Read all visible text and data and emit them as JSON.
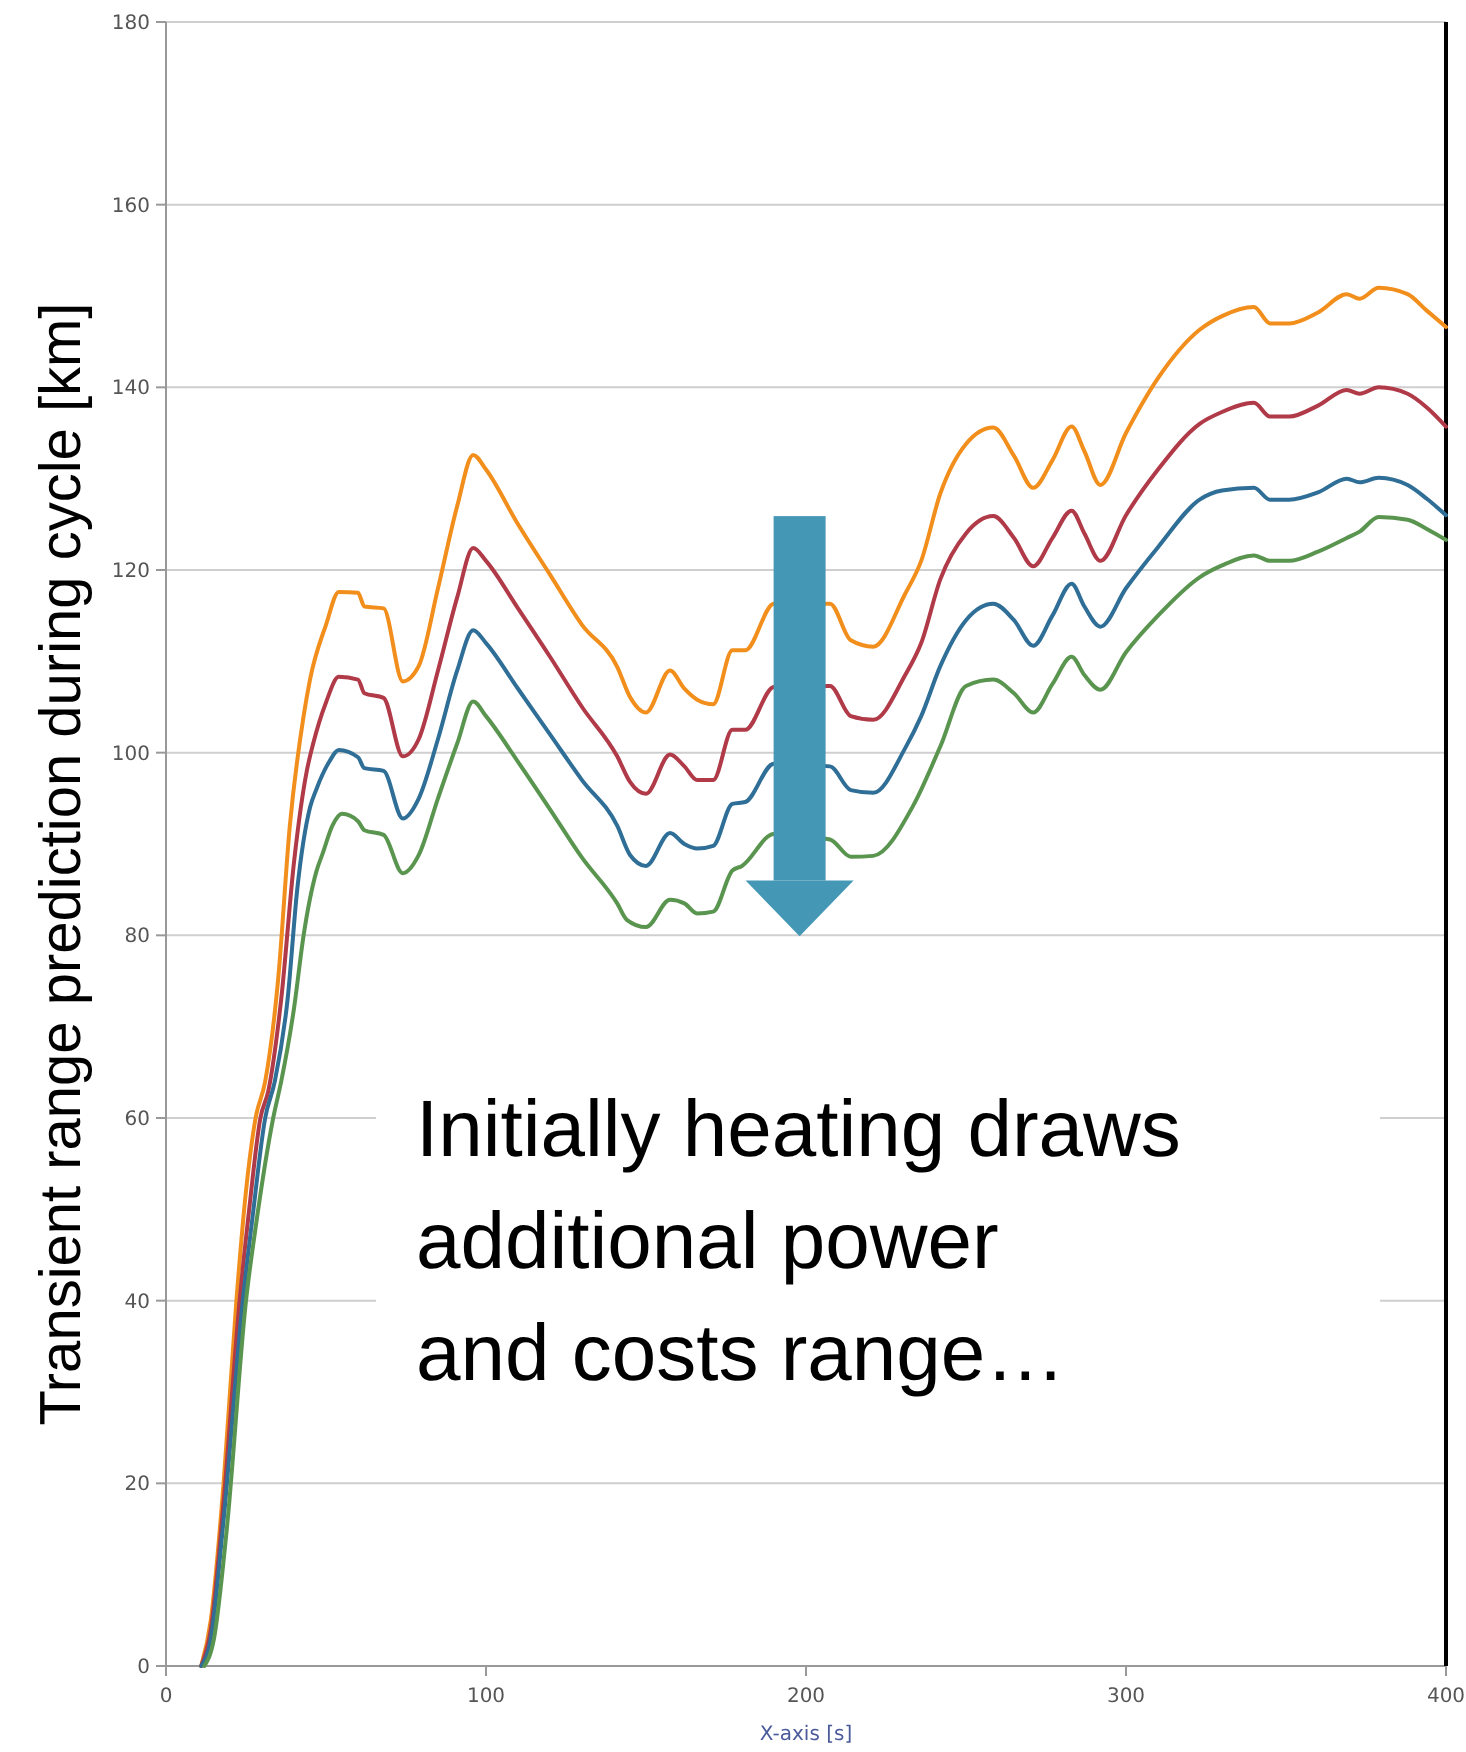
{
  "chart_data": {
    "type": "line",
    "xlabel": "X-axis [s]",
    "ylabel": "Transient range prediction during cycle [km]",
    "xlim": [
      0,
      400
    ],
    "ylim": [
      0,
      180
    ],
    "xticks": [
      0,
      100,
      200,
      300,
      400
    ],
    "yticks": [
      0,
      20,
      40,
      60,
      80,
      100,
      120,
      140,
      160,
      180
    ],
    "grid": "y",
    "marker": "none",
    "line_style": "solid",
    "annotations": [
      "Initially heating draws\nadditional power\nand costs range…"
    ],
    "series": [
      {
        "color": "#f28e1c",
        "x": [
          11,
          14,
          18,
          22,
          25,
          28,
          31,
          35,
          38.7,
          43,
          45,
          50,
          54,
          60,
          62,
          68,
          74,
          79,
          85,
          91,
          96,
          100,
          110,
          120,
          130,
          141,
          145,
          150,
          157.5,
          162,
          166,
          171,
          177,
          181,
          190,
          207.5,
          214,
          221,
          231,
          236,
          242,
          250,
          258.5,
          265,
          271,
          277,
          283,
          287,
          292,
          300,
          310,
          323,
          330,
          340,
          345,
          351,
          360,
          369,
          373,
          379,
          388,
          394,
          400
        ],
        "values": [
          0,
          5,
          20,
          40,
          52,
          60,
          64,
          75,
          92,
          104,
          108,
          114,
          117.6,
          117.5,
          116,
          115.8,
          107.8,
          109.5,
          118,
          127,
          132.6,
          131,
          125,
          119.5,
          114,
          109.4,
          106.1,
          104.4,
          109,
          107,
          105.8,
          105.3,
          111.2,
          111.2,
          116.3,
          116.3,
          112.3,
          111.6,
          117.4,
          121,
          128.4,
          133.8,
          135.6,
          132.5,
          129,
          132,
          135.7,
          133,
          129.3,
          135,
          141,
          146.3,
          147.8,
          148.8,
          147,
          147,
          148.2,
          150.2,
          149.7,
          150.9,
          150.2,
          148.4,
          146.6
        ]
      },
      {
        "color": "#b03a48",
        "x": [
          11,
          14,
          18,
          23,
          26,
          29.5,
          32,
          36,
          40,
          44,
          46,
          50,
          54,
          60,
          62,
          68,
          74,
          79,
          85,
          91,
          96,
          100,
          110,
          120,
          130,
          141,
          145,
          150,
          157.5,
          162,
          166,
          171,
          177,
          181,
          190,
          207.5,
          214,
          221,
          231,
          236,
          242,
          250,
          258.5,
          265,
          271,
          277,
          283,
          287,
          292,
          300,
          310,
          323,
          330,
          340,
          345,
          351,
          360,
          369,
          373,
          379,
          388,
          394,
          400
        ],
        "values": [
          0,
          4,
          18,
          40,
          50,
          60,
          63,
          73,
          88,
          98,
          101,
          105.5,
          108.3,
          108,
          106.5,
          106,
          99.6,
          101.5,
          109,
          117,
          122.4,
          121,
          115.8,
          110.5,
          105,
          99.6,
          96.8,
          95.5,
          99.8,
          98.5,
          97,
          97,
          102.5,
          102.5,
          107.2,
          107.3,
          104,
          103.6,
          108.5,
          112,
          119,
          124,
          125.9,
          123.5,
          120.4,
          123.5,
          126.5,
          124,
          121,
          126,
          131,
          136,
          137.3,
          138.3,
          136.8,
          136.8,
          138,
          139.7,
          139.3,
          140,
          139.3,
          137.8,
          135.7
        ]
      },
      {
        "color": "#2f6e96",
        "x": [
          11,
          14,
          18,
          24,
          27,
          31,
          34,
          38,
          41,
          45,
          47,
          51,
          54,
          60,
          62,
          68,
          74,
          79,
          85,
          91,
          96,
          100,
          110,
          120,
          130,
          141,
          145,
          150,
          157.5,
          162,
          166,
          171,
          177,
          181,
          190,
          207.5,
          214,
          221,
          231,
          236,
          242,
          250,
          258.5,
          265,
          271,
          277,
          283,
          287,
          292,
          300,
          310,
          323,
          330,
          340,
          345,
          351,
          360,
          369,
          373,
          379,
          388,
          394,
          400
        ],
        "values": [
          0,
          3,
          16,
          40,
          49,
          60,
          64,
          73,
          85,
          94,
          96,
          99,
          100.3,
          99.5,
          98.3,
          98,
          92.8,
          95,
          101.5,
          109,
          113.4,
          112,
          107,
          102,
          97,
          92,
          88.8,
          87.6,
          91.2,
          90,
          89.5,
          89.8,
          94.4,
          94.6,
          98.8,
          98.5,
          95.9,
          95.6,
          100.5,
          104,
          109.5,
          114.5,
          116.3,
          114.5,
          111.7,
          115,
          118.5,
          116,
          113.8,
          118,
          122.5,
          127.7,
          128.7,
          129,
          127.7,
          127.7,
          128.5,
          130,
          129.6,
          130.1,
          129.3,
          127.8,
          126
        ]
      },
      {
        "color": "#5a9550",
        "x": [
          12,
          15,
          19,
          25,
          28,
          33.5,
          36,
          40,
          43,
          47,
          49,
          52,
          55,
          60,
          62,
          68,
          74,
          79,
          85,
          91,
          96,
          100,
          110,
          120,
          130,
          141,
          144,
          150,
          157.5,
          162,
          166,
          171,
          177,
          180,
          190,
          207.5,
          214,
          221,
          233.5,
          242,
          250,
          258.5,
          265,
          271,
          277,
          283,
          287,
          292,
          300,
          310,
          323,
          330,
          340,
          345,
          351,
          360,
          369,
          373,
          379,
          388,
          394,
          400
        ],
        "values": [
          0,
          3,
          15,
          40,
          48,
          60,
          64,
          72,
          80,
          87,
          89,
          92,
          93.3,
          92.5,
          91.5,
          91,
          86.8,
          88.8,
          95,
          101,
          105.6,
          104,
          99,
          93.8,
          88.5,
          83.5,
          81.7,
          80.9,
          83.9,
          83.5,
          82.4,
          82.6,
          87.1,
          87.6,
          91.1,
          90.5,
          88.6,
          88.7,
          94.2,
          100.7,
          107.3,
          108,
          106.5,
          104.4,
          107.5,
          110.5,
          108.5,
          106.9,
          111,
          115,
          119.2,
          120.5,
          121.6,
          121,
          121,
          122,
          123.5,
          124.2,
          125.8,
          125.5,
          124.5,
          123.3
        ]
      }
    ]
  }
}
